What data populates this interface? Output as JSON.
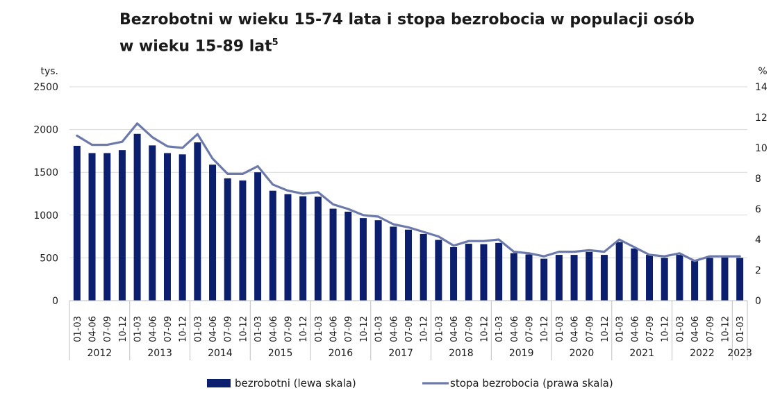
{
  "chart_data": {
    "type": "bar+line",
    "title_line1": "Bezrobotni w wieku 15-74 lata i stopa bezrobocia w populacji osób",
    "title_line2": "w wieku 15-89 lat",
    "title_sup": "5",
    "left_unit": "tys.",
    "right_unit": "%",
    "left_ylim": [
      0,
      2500
    ],
    "left_ticks": [
      "0",
      "500",
      "1000",
      "1500",
      "2000",
      "2500"
    ],
    "right_ylim": [
      0,
      14
    ],
    "right_ticks": [
      "0",
      "2",
      "4",
      "6",
      "8",
      "10",
      "12",
      "14"
    ],
    "categories": [
      "01-03",
      "04-06",
      "07-09",
      "10-12",
      "01-03",
      "04-06",
      "07-09",
      "10-12",
      "01-03",
      "04-06",
      "07-09",
      "10-12",
      "01-03",
      "04-06",
      "07-09",
      "10-12",
      "01-03",
      "04-06",
      "07-09",
      "10-12",
      "01-03",
      "04-06",
      "07-09",
      "10-12",
      "01-03",
      "04-06",
      "07-09",
      "10-12",
      "01-03",
      "04-06",
      "07-09",
      "10-12",
      "01-03",
      "04-06",
      "07-09",
      "10-12",
      "01-03",
      "04-06",
      "07-09",
      "10-12",
      "01-03",
      "04-06",
      "07-09",
      "10-12",
      "01-03"
    ],
    "years": [
      {
        "label": "2012",
        "quarters": 4
      },
      {
        "label": "2013",
        "quarters": 4
      },
      {
        "label": "2014",
        "quarters": 4
      },
      {
        "label": "2015",
        "quarters": 4
      },
      {
        "label": "2016",
        "quarters": 4
      },
      {
        "label": "2017",
        "quarters": 4
      },
      {
        "label": "2018",
        "quarters": 4
      },
      {
        "label": "2019",
        "quarters": 4
      },
      {
        "label": "2020",
        "quarters": 4
      },
      {
        "label": "2021",
        "quarters": 4
      },
      {
        "label": "2022",
        "quarters": 4
      },
      {
        "label": "2023",
        "quarters": 1
      }
    ],
    "series": [
      {
        "name": "bezrobotni (lewa skala)",
        "kind": "bar",
        "axis": "left",
        "color": "#0b1f6e",
        "values": [
          1810,
          1725,
          1725,
          1760,
          1950,
          1815,
          1725,
          1710,
          1850,
          1590,
          1430,
          1405,
          1500,
          1285,
          1245,
          1220,
          1215,
          1075,
          1040,
          965,
          940,
          865,
          830,
          780,
          710,
          625,
          665,
          660,
          675,
          555,
          540,
          490,
          535,
          535,
          570,
          535,
          685,
          610,
          535,
          500,
          535,
          465,
          500,
          505,
          500
        ]
      },
      {
        "name": "stopa bezrobocia (prawa skala)",
        "kind": "line",
        "axis": "right",
        "color": "#6c79ab",
        "values": [
          10.8,
          10.2,
          10.2,
          10.4,
          11.6,
          10.7,
          10.1,
          10.0,
          10.9,
          9.3,
          8.3,
          8.3,
          8.8,
          7.6,
          7.2,
          7.0,
          7.1,
          6.3,
          6.0,
          5.6,
          5.5,
          5.0,
          4.8,
          4.5,
          4.2,
          3.6,
          3.9,
          3.9,
          4.0,
          3.2,
          3.1,
          2.9,
          3.2,
          3.2,
          3.3,
          3.2,
          4.0,
          3.5,
          3.0,
          2.9,
          3.1,
          2.6,
          2.9,
          2.9,
          2.9
        ]
      }
    ],
    "legend_position": "bottom"
  }
}
